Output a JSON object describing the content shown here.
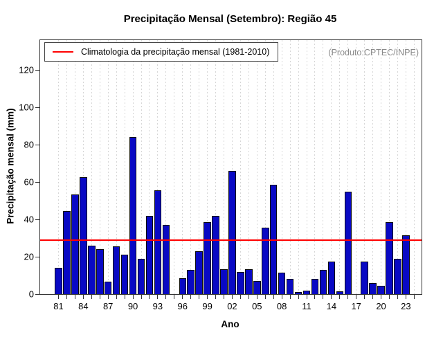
{
  "title": "Precipitação Mensal (Setembro): Região 45",
  "legend": {
    "label": "Climatologia da precipitação mensal (1981-2010)",
    "line_color": "#ff0000"
  },
  "watermark": {
    "text": "(Produto:CPTEC/INPE)",
    "color": "#8a8a8a"
  },
  "chart_data": {
    "type": "bar",
    "title": "Precipitação Mensal (Setembro): Região 45",
    "xlabel": "Ano",
    "ylabel": "Precipitação mensal (mm)",
    "ylim": [
      0,
      135
    ],
    "yticks": [
      0,
      20,
      40,
      60,
      80,
      100,
      120
    ],
    "grid": "vertical-dashed",
    "legend_position": "top-left",
    "x_label_interval": 3,
    "categories": [
      "81",
      "82",
      "83",
      "84",
      "85",
      "86",
      "87",
      "88",
      "89",
      "90",
      "91",
      "92",
      "93",
      "94",
      "95",
      "96",
      "97",
      "98",
      "99",
      "00",
      "01",
      "02",
      "03",
      "04",
      "05",
      "06",
      "07",
      "08",
      "09",
      "10",
      "11",
      "12",
      "13",
      "14",
      "15",
      "16",
      "17",
      "18",
      "19",
      "20",
      "21",
      "22",
      "23",
      "24"
    ],
    "values": [
      14,
      44.5,
      53.5,
      62.5,
      26,
      24,
      6.5,
      25.5,
      21,
      84,
      19,
      42,
      55.5,
      37,
      0,
      8.5,
      13,
      23,
      38.5,
      42,
      13.5,
      66,
      12,
      13.5,
      7,
      35.5,
      58.5,
      11.5,
      8,
      1,
      2,
      8,
      13,
      17.5,
      1.5,
      55,
      0,
      17.5,
      6,
      4.5,
      38.5,
      19,
      31.5,
      null
    ],
    "climatology_value": 28.9,
    "bar_color": "#0909c4",
    "bar_border_color": "#0d0d0d",
    "climatology_color": "#ff0000",
    "grid_color": "#d6d6d6"
  }
}
